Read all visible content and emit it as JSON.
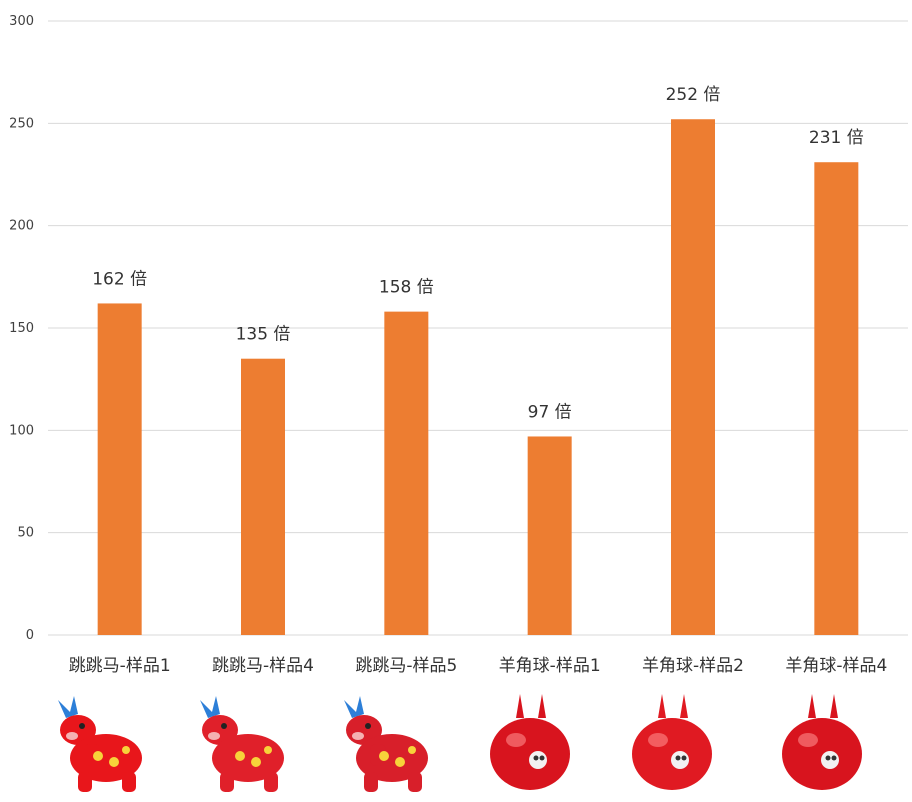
{
  "chart_data": {
    "type": "bar",
    "title": "",
    "xlabel": "",
    "ylabel": "",
    "categories": [
      "跳跳马-样品1",
      "跳跳马-样品4",
      "跳跳马-样品5",
      "羊角球-样品1",
      "羊角球-样品2",
      "羊角球-样品4"
    ],
    "values": [
      162,
      135,
      158,
      97,
      252,
      231
    ],
    "data_labels": [
      "162 倍",
      "135 倍",
      "158 倍",
      "97 倍",
      "252 倍",
      "231 倍"
    ],
    "ylim": [
      0,
      300
    ],
    "yticks": [
      "0",
      "50",
      "100",
      "150",
      "200",
      "250",
      "300"
    ],
    "grid": true,
    "legend": "none",
    "colors": {
      "bar": "#ED7D31",
      "grid": "#D9D9D9",
      "text": "#333333"
    }
  },
  "images": [
    {
      "icon": "horse-toy-icon",
      "color": "#E8161B"
    },
    {
      "icon": "horse-toy-icon",
      "color": "#E0202A"
    },
    {
      "icon": "horse-toy-icon",
      "color": "#D81F2A"
    },
    {
      "icon": "ball-toy-icon",
      "color": "#D8141E"
    },
    {
      "icon": "ball-toy-icon",
      "color": "#E01A22"
    },
    {
      "icon": "ball-toy-icon",
      "color": "#D8141E"
    }
  ]
}
